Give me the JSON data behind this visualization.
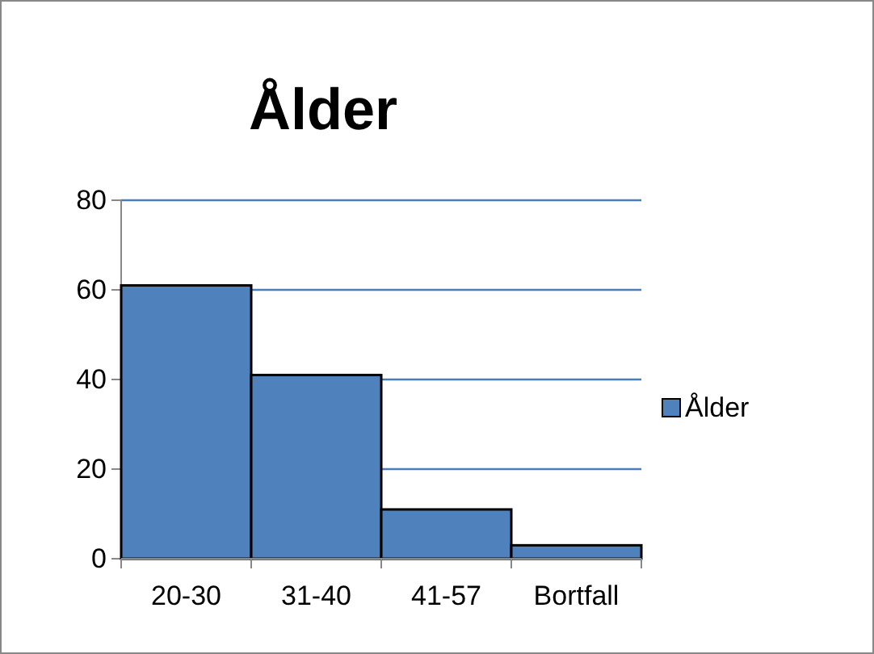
{
  "chart_data": {
    "type": "bar",
    "title": "Ålder",
    "categories": [
      "20-30",
      "31-40",
      "41-57",
      "Bortfall"
    ],
    "series": [
      {
        "name": "Ålder",
        "color": "#4f81bd",
        "values": [
          61,
          41,
          11,
          3
        ]
      }
    ],
    "ylim": [
      0,
      80
    ],
    "yticks": [
      0,
      20,
      40,
      60,
      80
    ],
    "grid": "y",
    "legend": "right"
  }
}
